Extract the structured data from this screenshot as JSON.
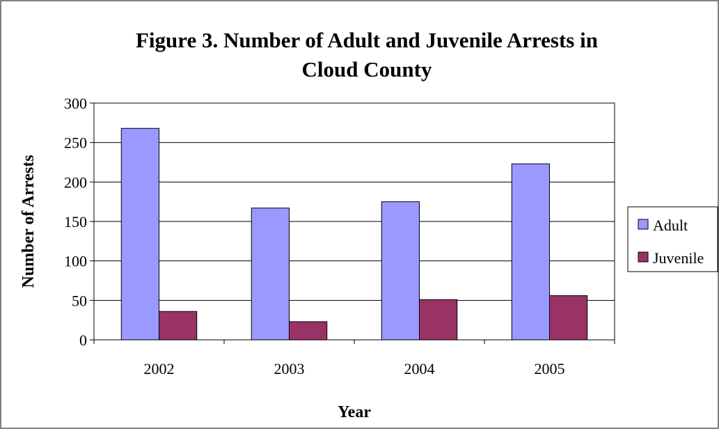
{
  "chart_data": {
    "type": "bar",
    "title": "Figure 3. Number of Adult and Juvenile Arrests in Cloud County",
    "title_lines": [
      "Figure 3. Number of Adult and Juvenile Arrests in",
      "Cloud County"
    ],
    "xlabel": "Year",
    "ylabel": "Number of Arrests",
    "categories": [
      "2002",
      "2003",
      "2004",
      "2005"
    ],
    "series": [
      {
        "name": "Adult",
        "color": "#9999ff",
        "values": [
          268,
          167,
          175,
          223
        ]
      },
      {
        "name": "Juvenile",
        "color": "#993366",
        "values": [
          36,
          23,
          51,
          56
        ]
      }
    ],
    "ylim": [
      0,
      300
    ],
    "yticks": [
      0,
      50,
      100,
      150,
      200,
      250,
      300
    ],
    "grid": true,
    "legend_position": "right"
  }
}
